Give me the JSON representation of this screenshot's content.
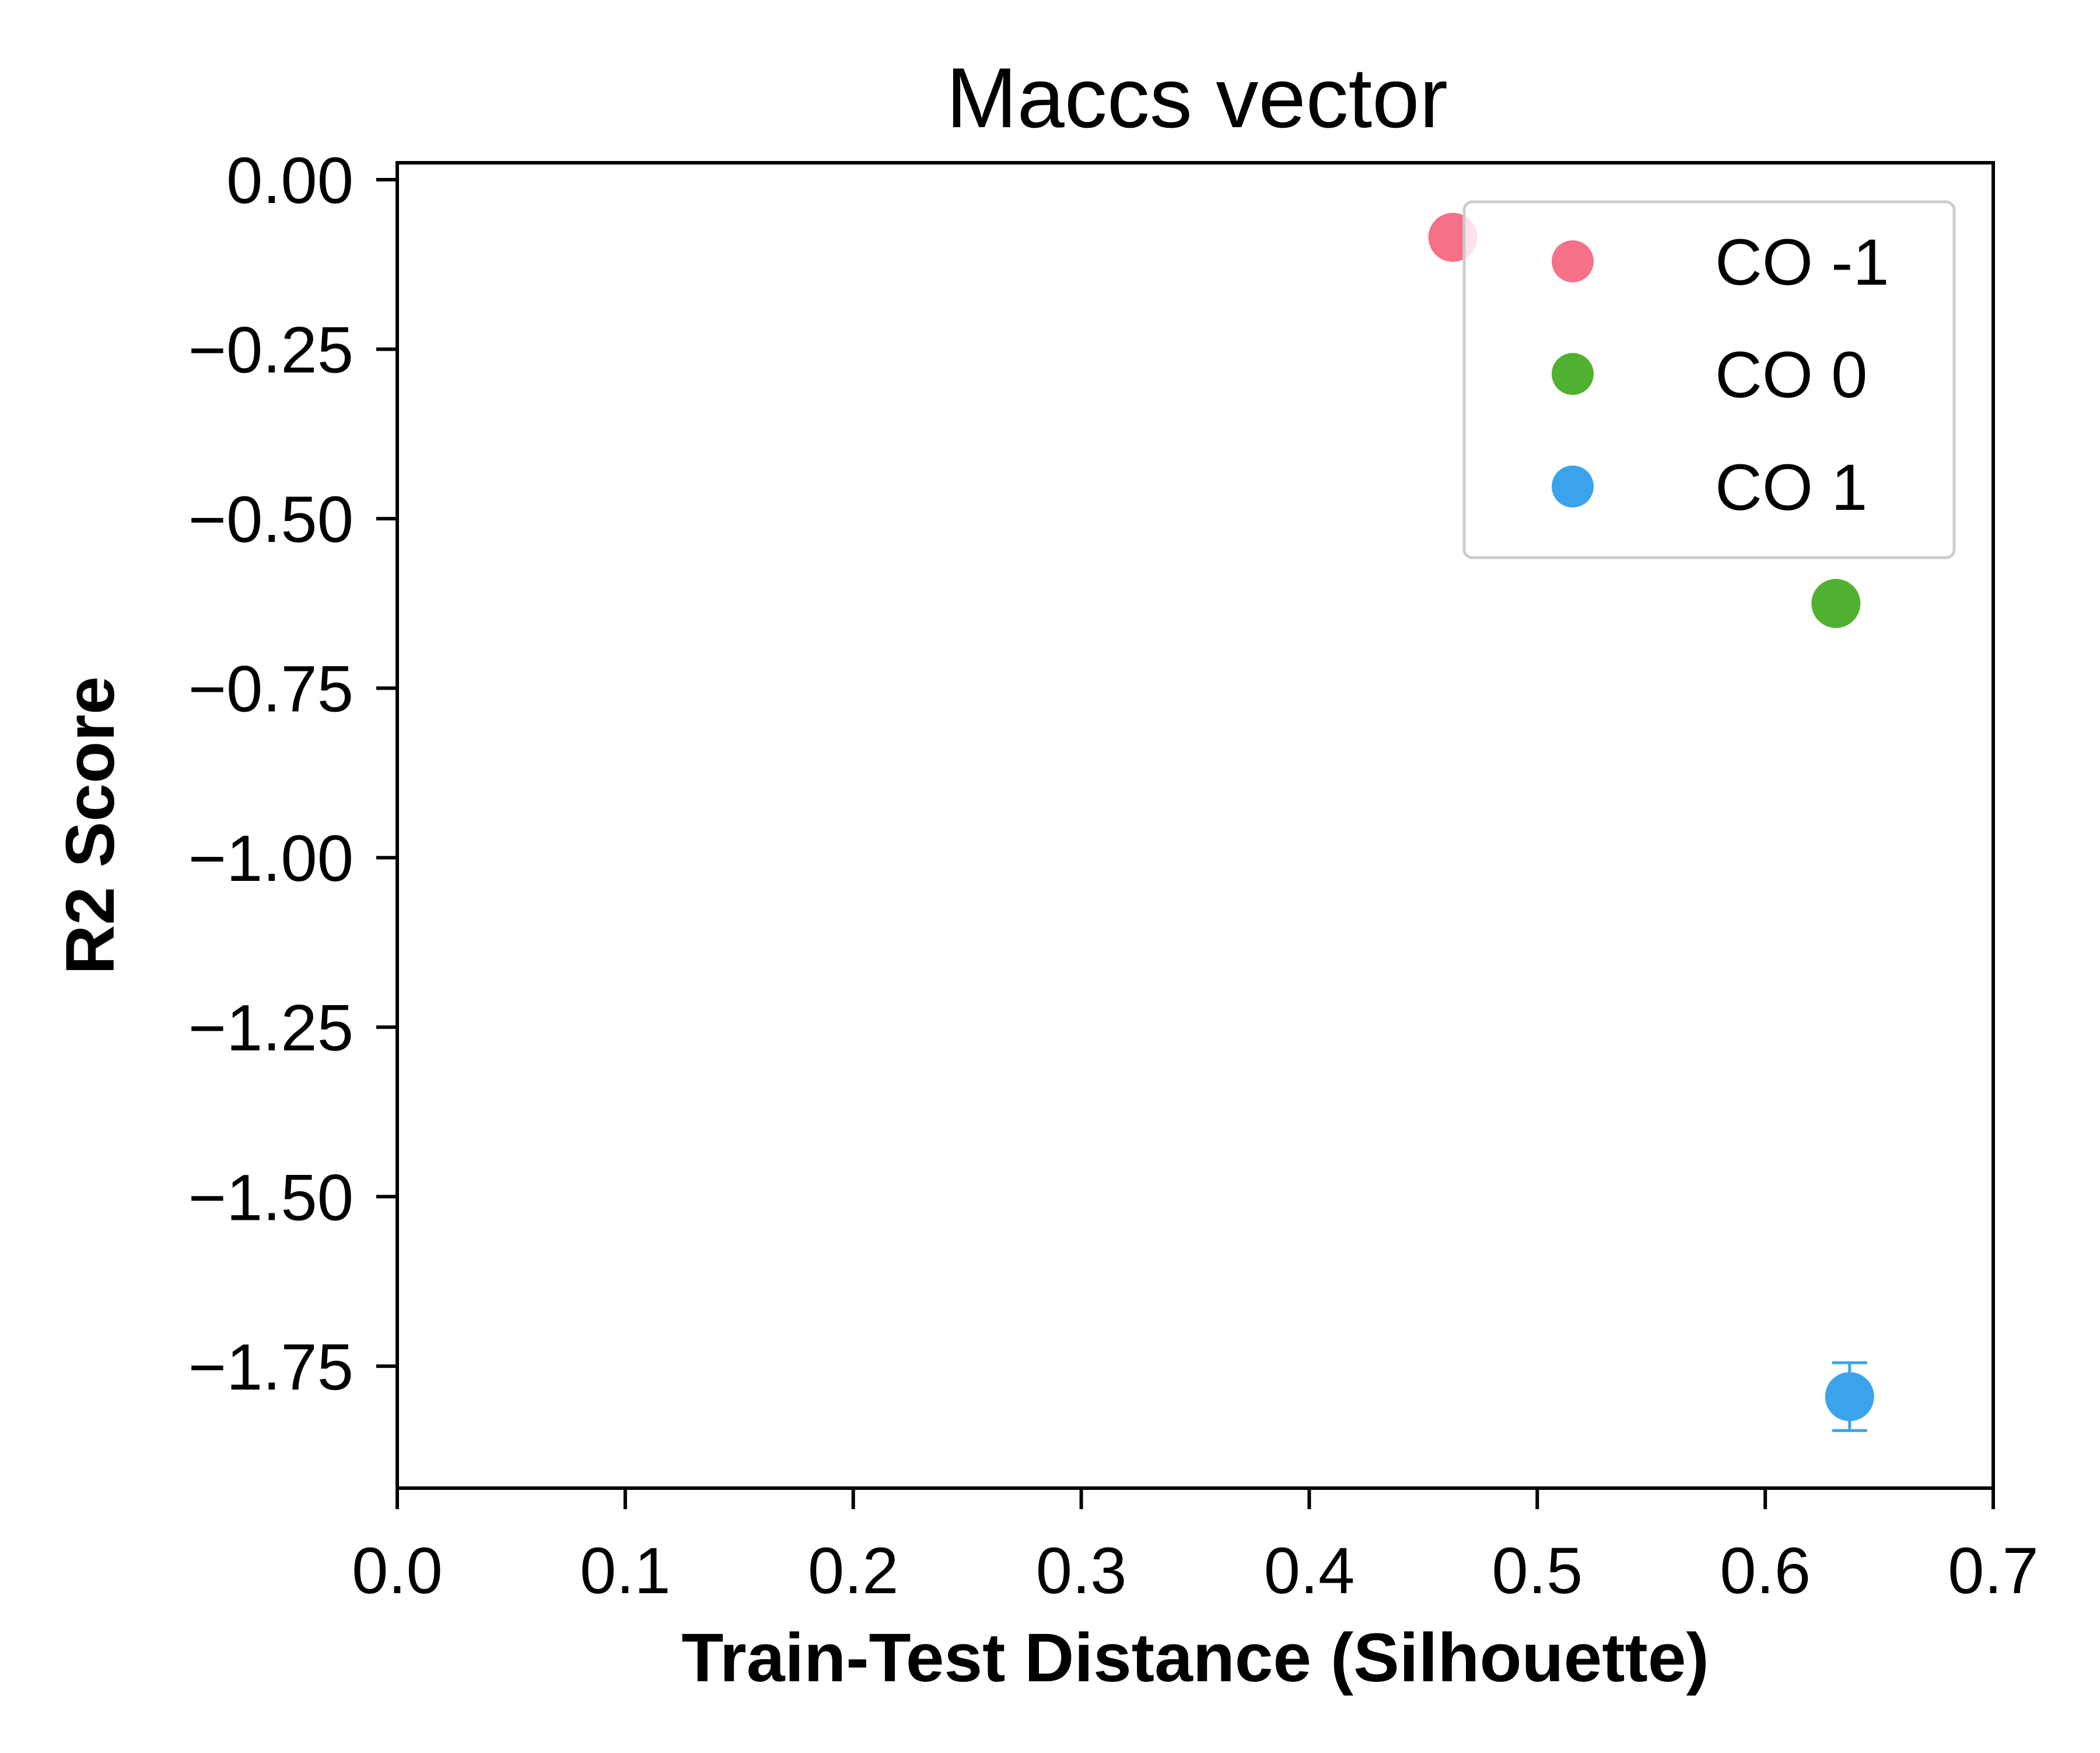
{
  "chart_data": {
    "type": "scatter",
    "title": "Maccs vector",
    "xlabel": "Train-Test Distance (Silhouette)",
    "ylabel": "R2 Score",
    "xlim": [
      0.0,
      0.7
    ],
    "ylim": [
      -1.93,
      0.025
    ],
    "xticks": [
      "0.0",
      "0.1",
      "0.2",
      "0.3",
      "0.4",
      "0.5",
      "0.6",
      "0.7"
    ],
    "yticks": [
      "0.00",
      "−0.25",
      "−0.50",
      "−0.75",
      "−1.00",
      "−1.25",
      "−1.50",
      "−1.75"
    ],
    "grid": false,
    "legend_position": "top-right",
    "series": [
      {
        "name": "CO -1",
        "color": "#f67088",
        "points": [
          {
            "x": 0.463,
            "y": -0.085,
            "yerr": 0.0
          }
        ]
      },
      {
        "name": "CO 0",
        "color": "#50b131",
        "points": [
          {
            "x": 0.631,
            "y": -0.625,
            "yerr": 0.0
          }
        ]
      },
      {
        "name": "CO 1",
        "color": "#3ba3ec",
        "points": [
          {
            "x": 0.637,
            "y": -1.795,
            "yerr": 0.05
          }
        ]
      }
    ]
  }
}
